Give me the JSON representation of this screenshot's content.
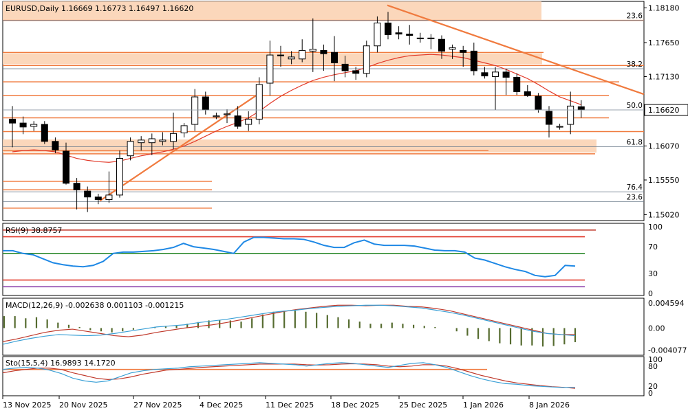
{
  "chart_data": {
    "type": "candlestick",
    "symbol_line": "EURUSD,Daily  1.16669 1.16773 1.16497 1.16620",
    "price_axis": {
      "ylim": [
        1.1493,
        1.1828
      ],
      "ticks": [
        "1.18180",
        "1.17650",
        "1.17130",
        "1.16620",
        "1.16070",
        "1.15550",
        "1.15020"
      ],
      "tick_values": [
        1.1818,
        1.1765,
        1.1713,
        1.1662,
        1.1607,
        1.1555,
        1.1502
      ],
      "current_price": "1.16620",
      "current_value": 1.1662
    },
    "date_labels": [
      "13 Nov 2025",
      "20 Nov 2025",
      "27 Nov 2025",
      "4 Dec 2025",
      "11 Dec 2025",
      "18 Dec 2025",
      "25 Dec 2025",
      "1 Jan 2026",
      "8 Jan 2026"
    ],
    "date_label_bars": [
      0,
      5,
      10,
      15,
      20,
      25,
      30,
      35,
      40
    ],
    "candles": [
      {
        "o": 1.1648,
        "h": 1.1668,
        "l": 1.1605,
        "c": 1.1642
      },
      {
        "o": 1.1642,
        "h": 1.1652,
        "l": 1.1625,
        "c": 1.1636
      },
      {
        "o": 1.1637,
        "h": 1.1645,
        "l": 1.163,
        "c": 1.164
      },
      {
        "o": 1.164,
        "h": 1.1645,
        "l": 1.161,
        "c": 1.1614
      },
      {
        "o": 1.1614,
        "h": 1.162,
        "l": 1.1596,
        "c": 1.1601
      },
      {
        "o": 1.1599,
        "h": 1.1612,
        "l": 1.1548,
        "c": 1.155
      },
      {
        "o": 1.155,
        "h": 1.1558,
        "l": 1.151,
        "c": 1.154
      },
      {
        "o": 1.1538,
        "h": 1.1545,
        "l": 1.1506,
        "c": 1.1529
      },
      {
        "o": 1.1529,
        "h": 1.1534,
        "l": 1.1518,
        "c": 1.1525
      },
      {
        "o": 1.1525,
        "h": 1.1568,
        "l": 1.152,
        "c": 1.1532
      },
      {
        "o": 1.1532,
        "h": 1.16,
        "l": 1.1528,
        "c": 1.1588
      },
      {
        "o": 1.1592,
        "h": 1.162,
        "l": 1.1585,
        "c": 1.1614
      },
      {
        "o": 1.1612,
        "h": 1.1622,
        "l": 1.16,
        "c": 1.1616
      },
      {
        "o": 1.1612,
        "h": 1.1626,
        "l": 1.1593,
        "c": 1.1618
      },
      {
        "o": 1.1614,
        "h": 1.1628,
        "l": 1.1608,
        "c": 1.1616
      },
      {
        "o": 1.1614,
        "h": 1.1658,
        "l": 1.1602,
        "c": 1.1626
      },
      {
        "o": 1.1627,
        "h": 1.1642,
        "l": 1.162,
        "c": 1.1638
      },
      {
        "o": 1.164,
        "h": 1.1694,
        "l": 1.163,
        "c": 1.1682
      },
      {
        "o": 1.1682,
        "h": 1.169,
        "l": 1.1655,
        "c": 1.1662
      },
      {
        "o": 1.1653,
        "h": 1.1658,
        "l": 1.1648,
        "c": 1.1653
      },
      {
        "o": 1.1656,
        "h": 1.1663,
        "l": 1.1642,
        "c": 1.1656
      },
      {
        "o": 1.1653,
        "h": 1.1668,
        "l": 1.1633,
        "c": 1.1637
      },
      {
        "o": 1.164,
        "h": 1.166,
        "l": 1.163,
        "c": 1.1648
      },
      {
        "o": 1.1648,
        "h": 1.1712,
        "l": 1.164,
        "c": 1.1701
      },
      {
        "o": 1.1703,
        "h": 1.1768,
        "l": 1.1684,
        "c": 1.1746
      },
      {
        "o": 1.1746,
        "h": 1.176,
        "l": 1.1728,
        "c": 1.1745
      },
      {
        "o": 1.174,
        "h": 1.1752,
        "l": 1.1732,
        "c": 1.1743
      },
      {
        "o": 1.174,
        "h": 1.177,
        "l": 1.1735,
        "c": 1.1753
      },
      {
        "o": 1.1752,
        "h": 1.1802,
        "l": 1.172,
        "c": 1.1755
      },
      {
        "o": 1.1753,
        "h": 1.1762,
        "l": 1.1722,
        "c": 1.1748
      },
      {
        "o": 1.175,
        "h": 1.1775,
        "l": 1.1706,
        "c": 1.1734
      },
      {
        "o": 1.1732,
        "h": 1.1745,
        "l": 1.1712,
        "c": 1.1722
      },
      {
        "o": 1.1722,
        "h": 1.1728,
        "l": 1.1708,
        "c": 1.1718
      },
      {
        "o": 1.1718,
        "h": 1.1768,
        "l": 1.1712,
        "c": 1.176
      },
      {
        "o": 1.176,
        "h": 1.1805,
        "l": 1.175,
        "c": 1.1795
      },
      {
        "o": 1.1795,
        "h": 1.1812,
        "l": 1.177,
        "c": 1.1777
      },
      {
        "o": 1.178,
        "h": 1.179,
        "l": 1.177,
        "c": 1.1778
      },
      {
        "o": 1.1778,
        "h": 1.1792,
        "l": 1.1762,
        "c": 1.1776
      },
      {
        "o": 1.1771,
        "h": 1.178,
        "l": 1.1765,
        "c": 1.1772
      },
      {
        "o": 1.1772,
        "h": 1.1778,
        "l": 1.1755,
        "c": 1.1772
      },
      {
        "o": 1.177,
        "h": 1.1776,
        "l": 1.174,
        "c": 1.1752
      },
      {
        "o": 1.1755,
        "h": 1.1762,
        "l": 1.174,
        "c": 1.1757
      },
      {
        "o": 1.1753,
        "h": 1.176,
        "l": 1.1728,
        "c": 1.175
      },
      {
        "o": 1.1752,
        "h": 1.1765,
        "l": 1.1715,
        "c": 1.1722
      },
      {
        "o": 1.1719,
        "h": 1.1728,
        "l": 1.171,
        "c": 1.1714
      },
      {
        "o": 1.1713,
        "h": 1.1728,
        "l": 1.1662,
        "c": 1.172
      },
      {
        "o": 1.172,
        "h": 1.1725,
        "l": 1.1685,
        "c": 1.1712
      },
      {
        "o": 1.1712,
        "h": 1.1718,
        "l": 1.1685,
        "c": 1.169
      },
      {
        "o": 1.169,
        "h": 1.17,
        "l": 1.1682,
        "c": 1.1684
      },
      {
        "o": 1.1683,
        "h": 1.1688,
        "l": 1.1658,
        "c": 1.1663
      },
      {
        "o": 1.166,
        "h": 1.1668,
        "l": 1.162,
        "c": 1.164
      },
      {
        "o": 1.1637,
        "h": 1.1641,
        "l": 1.1632,
        "c": 1.1637
      },
      {
        "o": 1.164,
        "h": 1.169,
        "l": 1.1625,
        "c": 1.1668
      },
      {
        "o": 1.1667,
        "h": 1.1677,
        "l": 1.165,
        "c": 1.1662
      }
    ],
    "moving_average": [
      1.1598,
      1.16,
      1.1601,
      1.16,
      1.1598,
      1.1593,
      1.1588,
      1.1585,
      1.1583,
      1.1582,
      1.1584,
      1.1588,
      1.1592,
      1.1595,
      1.1598,
      1.1602,
      1.1607,
      1.1614,
      1.1622,
      1.163,
      1.1637,
      1.1643,
      1.165,
      1.166,
      1.1672,
      1.1683,
      1.1692,
      1.17,
      1.1707,
      1.1712,
      1.1716,
      1.1719,
      1.1722,
      1.1727,
      1.1733,
      1.1738,
      1.1742,
      1.1745,
      1.1746,
      1.1747,
      1.1746,
      1.1744,
      1.1742,
      1.1738,
      1.1734,
      1.173,
      1.1724,
      1.1717,
      1.171,
      1.1701,
      1.1691,
      1.1682,
      1.1676,
      1.167
    ],
    "zones": [
      {
        "y1": 1.1828,
        "y2": 1.1799
      },
      {
        "y1": 1.1749,
        "y2": 1.1732
      },
      {
        "y1": 1.1617,
        "y2": 1.1597
      }
    ],
    "horizontal_levels": [
      1.1799,
      1.175,
      1.173,
      1.1705,
      1.1684,
      1.165,
      1.1629,
      1.16,
      1.1595,
      1.1553,
      1.154,
      1.1512
    ],
    "fibo_levels": [
      {
        "label": "23.6",
        "value": 1.1799
      },
      {
        "label": "38.2",
        "value": 1.1725
      },
      {
        "label": "50.0",
        "value": 1.1662
      },
      {
        "label": "61.8",
        "value": 1.1606
      },
      {
        "label": "76.4",
        "value": 1.1537
      },
      {
        "label": "23.6",
        "value": 1.1522
      }
    ],
    "trendlines": [
      {
        "from_bar": 10,
        "from": 1.1523,
        "to_bar": 27,
        "to": 1.1686
      },
      {
        "from_bar": 41,
        "from": 1.1822,
        "to_bar": 66,
        "to": 1.1686
      }
    ],
    "rsi": {
      "label": "RSI(9) 38.8757",
      "ylim": [
        0,
        100
      ],
      "ticks": [
        "100",
        "70",
        "30",
        "0"
      ],
      "tick_values": [
        100,
        70,
        30,
        0
      ],
      "levels": [
        95,
        85,
        60,
        20,
        10
      ],
      "values": [
        64,
        64,
        60,
        58,
        52,
        46,
        43,
        41,
        40,
        42,
        48,
        60,
        62,
        62,
        63,
        64,
        66,
        69,
        75,
        70,
        68,
        66,
        63,
        60,
        77,
        84,
        84,
        83,
        82,
        82,
        81,
        77,
        72,
        69,
        69,
        76,
        80,
        74,
        72,
        72,
        72,
        71,
        68,
        65,
        64,
        64,
        62,
        53,
        50,
        45,
        40,
        36,
        33,
        27,
        25,
        27,
        42,
        41
      ]
    },
    "macd": {
      "label": "MACD(12,26,9) -0.002638 0.001103 -0.001215",
      "ylim": [
        -0.005,
        0.0055
      ],
      "ticks": [
        "0.004594",
        "0.00",
        "-0.004077"
      ],
      "tick_values": [
        0.004594,
        0.0,
        -0.004077
      ],
      "histogram": [
        0.0022,
        0.0022,
        0.0018,
        0.002,
        0.0016,
        0.001,
        0.0006,
        0.0002,
        -0.0004,
        -0.0006,
        -0.0008,
        -0.0006,
        -0.0003,
        0.0,
        0.0002,
        0.0003,
        0.0005,
        0.0008,
        0.0011,
        0.0014,
        0.0015,
        0.0014,
        0.0012,
        0.0018,
        0.0025,
        0.003,
        0.0032,
        0.0032,
        0.003,
        0.0028,
        0.0024,
        0.002,
        0.0016,
        0.0012,
        0.0008,
        0.0008,
        0.001,
        0.0008,
        0.0006,
        0.0004,
        0.0002,
        0.0,
        -0.0006,
        -0.0014,
        -0.002,
        -0.0024,
        -0.0028,
        -0.003,
        -0.0032,
        -0.0032,
        -0.0034,
        -0.0033,
        -0.003,
        -0.0026
      ],
      "signal": [
        -0.0025,
        -0.002,
        -0.0014,
        -0.0008,
        -0.0004,
        -0.0002,
        -0.0006,
        -0.001,
        -0.0014,
        -0.0016,
        -0.0013,
        -0.0008,
        -0.0004,
        0.0,
        0.0003,
        0.0006,
        0.001,
        0.0015,
        0.002,
        0.0025,
        0.003,
        0.0034,
        0.0037,
        0.004,
        0.0042,
        0.0042,
        0.0041,
        0.0042,
        0.0042,
        0.004,
        0.0039,
        0.0036,
        0.0032,
        0.0026,
        0.002,
        0.0014,
        0.0008,
        0.0002,
        -0.0004,
        -0.001,
        -0.0012,
        -0.0012
      ],
      "main": [
        -0.003,
        -0.0024,
        -0.0019,
        -0.0015,
        -0.0012,
        -0.0013,
        -0.0014,
        -0.0013,
        -0.001,
        -0.0006,
        -0.0002,
        0.0002,
        0.0004,
        0.0006,
        0.001,
        0.0013,
        0.0016,
        0.002,
        0.0024,
        0.0028,
        0.0031,
        0.0033,
        0.0036,
        0.0038,
        0.004,
        0.0041,
        0.0042,
        0.0042,
        0.0041,
        0.0039,
        0.0037,
        0.0033,
        0.0029,
        0.0024,
        0.0018,
        0.0012,
        0.0006,
        0.0,
        -0.0006,
        -0.001,
        -0.0012,
        -0.0014
      ]
    },
    "stochastic": {
      "label": "Sto(15,5,4) 16.9893 14.1720",
      "ylim": [
        0,
        100
      ],
      "ticks": [
        "100",
        "80",
        "20",
        "0"
      ],
      "tick_values": [
        100,
        80,
        20,
        0
      ],
      "levels": [
        70
      ],
      "main": [
        70,
        74,
        76,
        74,
        68,
        58,
        44,
        36,
        32,
        36,
        48,
        60,
        66,
        70,
        72,
        74,
        78,
        80,
        82,
        84,
        86,
        88,
        90,
        88,
        86,
        84,
        80,
        84,
        88,
        90,
        88,
        84,
        80,
        76,
        82,
        88,
        90,
        84,
        76,
        64,
        52,
        42,
        34,
        28,
        26,
        22,
        20,
        18,
        16,
        17
      ],
      "signal": [
        60,
        66,
        70,
        74,
        74,
        70,
        60,
        52,
        44,
        40,
        42,
        48,
        56,
        62,
        68,
        70,
        73,
        76,
        78,
        80,
        82,
        84,
        86,
        86,
        86,
        86,
        84,
        83,
        84,
        86,
        87,
        86,
        84,
        80,
        78,
        80,
        84,
        84,
        80,
        72,
        62,
        52,
        44,
        36,
        30,
        26,
        22,
        19,
        17,
        14
      ]
    }
  }
}
